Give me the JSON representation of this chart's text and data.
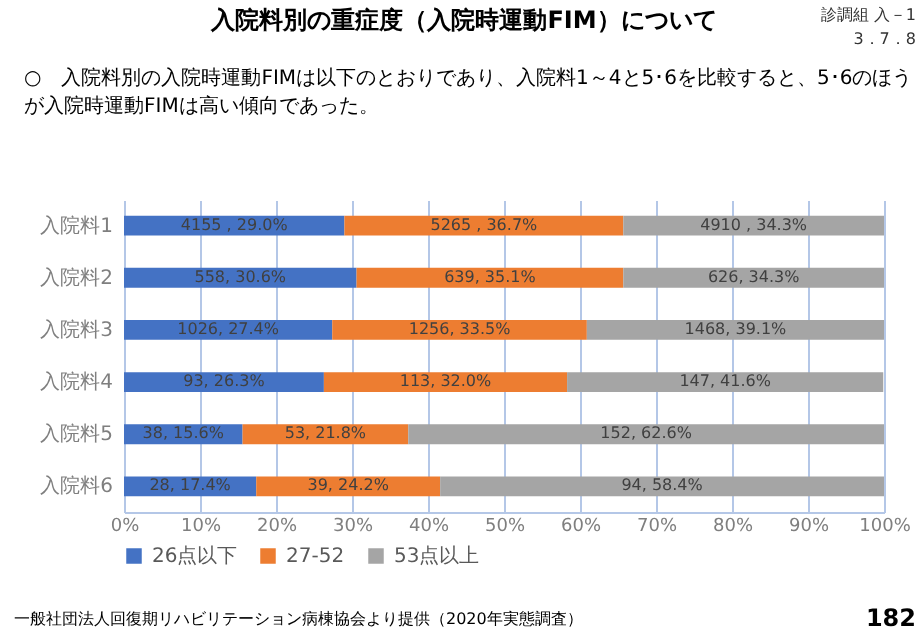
{
  "chart_data": {
    "type": "bar",
    "orientation": "horizontal",
    "stacked": true,
    "title": "入院料別の重症度（入院時運動FIM）について",
    "annotations": [
      "診調組 入－1\n3．7．8",
      "○　入院料別の入院時運動FIMは以下のとおりであり、入院料1～4と5･6を比較すると、5･6のほうが入院時運動FIMは高い傾向であった。",
      "一般社団法人回復期リハビリテーション病棟協会より提供（2020年実態調査）",
      "182"
    ],
    "categories": [
      "入院料1",
      "入院料2",
      "入院料3",
      "入院料4",
      "入院料5",
      "入院料6"
    ],
    "series": [
      {
        "name": "26点以下",
        "color": "#4472c4",
        "values": [
          29.0,
          30.6,
          27.4,
          26.3,
          15.6,
          17.4
        ],
        "value_labels": [
          "4155 , 29.0%",
          "558, 30.6%",
          "1026, 27.4%",
          "93, 26.3%",
          "38, 15.6%",
          "28, 17.4%"
        ]
      },
      {
        "name": "27-52",
        "color": "#ed7d31",
        "values": [
          36.7,
          35.1,
          33.5,
          32.0,
          21.8,
          24.2
        ],
        "value_labels": [
          "5265 , 36.7%",
          "639, 35.1%",
          "1256, 33.5%",
          "113, 32.0%",
          "53, 21.8%",
          "39, 24.2%"
        ]
      },
      {
        "name": "53点以上",
        "color": "#a5a5a5",
        "values": [
          34.3,
          34.3,
          39.1,
          41.6,
          62.6,
          58.4
        ],
        "value_labels": [
          "4910 , 34.3%",
          "626, 34.3%",
          "1468, 39.1%",
          "147, 41.6%",
          "152, 62.6%",
          "94, 58.4%"
        ]
      }
    ],
    "xlim": [
      0,
      100
    ],
    "xticks": [
      {
        "value": 0,
        "label": "0%"
      },
      {
        "value": 10,
        "label": "10%"
      },
      {
        "value": 20,
        "label": "20%"
      },
      {
        "value": 30,
        "label": "30%"
      },
      {
        "value": 40,
        "label": "40%"
      },
      {
        "value": 50,
        "label": "50%"
      },
      {
        "value": 60,
        "label": "60%"
      },
      {
        "value": 70,
        "label": "70%"
      },
      {
        "value": 80,
        "label": "80%"
      },
      {
        "value": 90,
        "label": "90%"
      },
      {
        "value": 100,
        "label": "100%"
      }
    ],
    "grid": "x",
    "legend": "bottom"
  }
}
